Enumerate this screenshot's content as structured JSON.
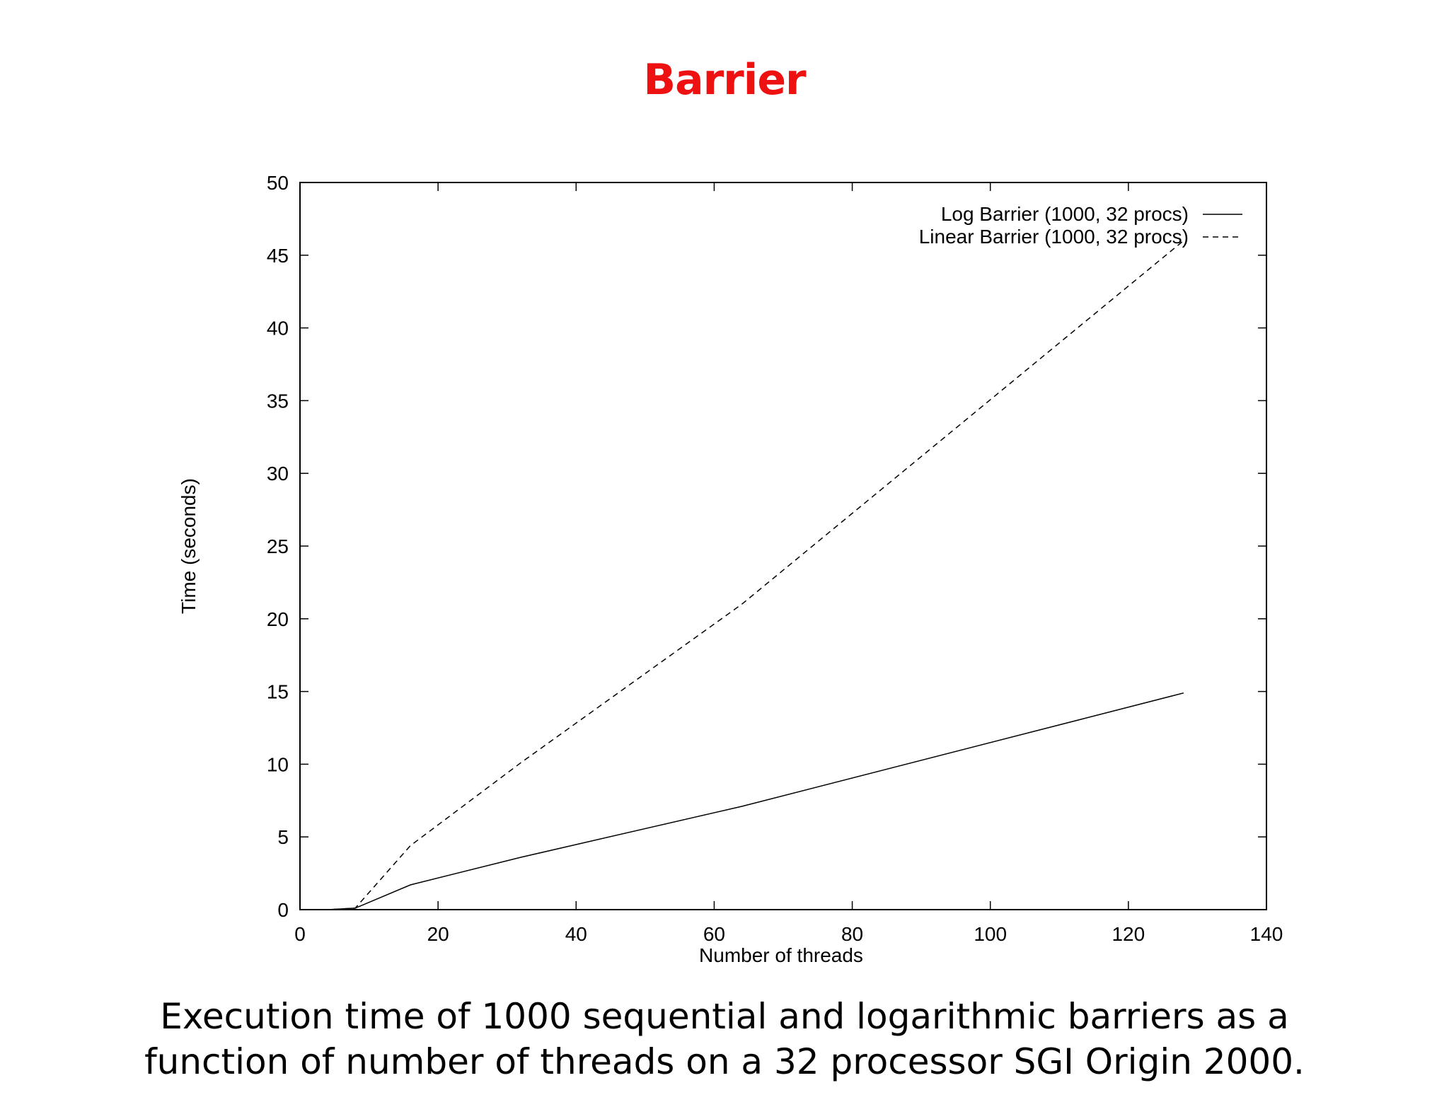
{
  "slide": {
    "title": "Barrier",
    "title_color": "#ee1111",
    "caption_lines": [
      "Execution time of 1000 sequential and logarithmic barriers as a",
      "function of number of threads on a 32 processor SGI Origin 2000."
    ]
  },
  "chart_data": {
    "type": "line",
    "title": "",
    "xlabel": "Number of threads",
    "ylabel": "Time (seconds)",
    "xlim": [
      0,
      140
    ],
    "ylim": [
      0,
      50
    ],
    "xticks": [
      0,
      20,
      40,
      60,
      80,
      100,
      120,
      140
    ],
    "yticks": [
      0,
      5,
      10,
      15,
      20,
      25,
      30,
      35,
      40,
      45,
      50
    ],
    "grid": false,
    "legend_position": "top-right",
    "series": [
      {
        "name": "Log Barrier (1000, 32 procs)",
        "style": "solid",
        "x": [
          2,
          4,
          8,
          16,
          32,
          64,
          128
        ],
        "y": [
          0,
          0,
          0.1,
          1.7,
          3.6,
          7.1,
          14.9
        ]
      },
      {
        "name": "Linear Barrier (1000, 32 procs)",
        "style": "dashed",
        "x": [
          2,
          4,
          8,
          16,
          32,
          64,
          128
        ],
        "y": [
          0,
          0,
          0.1,
          4.4,
          10.1,
          21.0,
          46.0
        ]
      }
    ]
  }
}
